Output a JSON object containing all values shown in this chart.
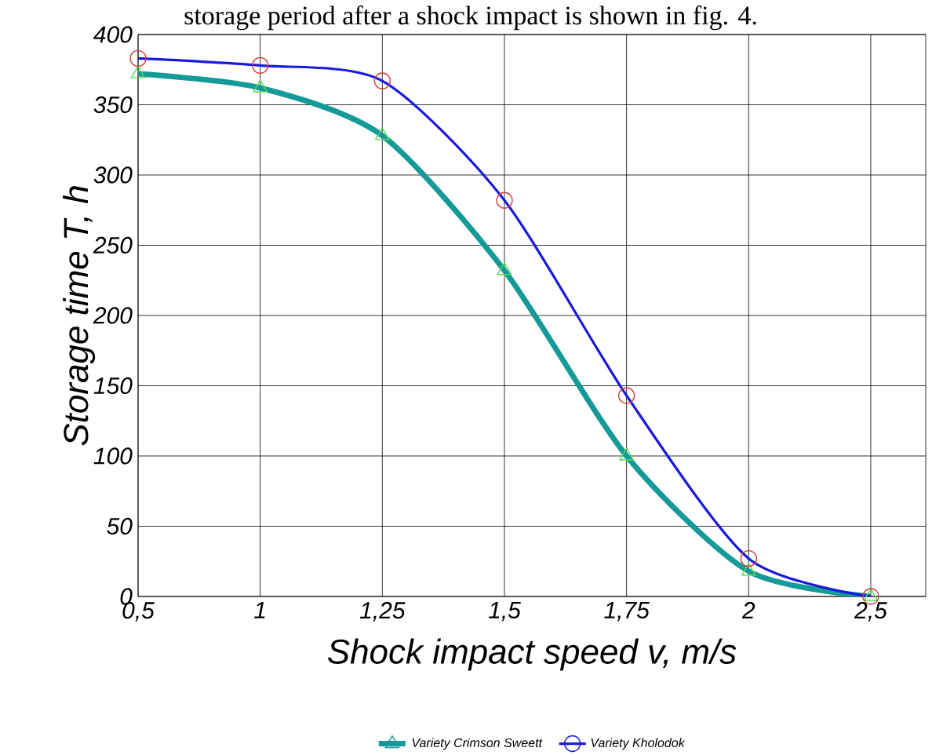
{
  "chart_data": {
    "type": "line",
    "annotations": [
      "storage period after a shock impact is shown in fig. 4."
    ],
    "xlabel": "Shock impact speed v, m/s",
    "ylabel": "Storage time T, h",
    "categories": [
      "0,5",
      "1",
      "1,25",
      "1,5",
      "1,75",
      "2",
      "2,5"
    ],
    "ylim": [
      0,
      400
    ],
    "yticks": [
      0,
      50,
      100,
      150,
      200,
      250,
      300,
      350,
      400
    ],
    "grid": true,
    "legend": "bottom",
    "series": [
      {
        "name": "Variety Crimson Sweett",
        "color": "#159a98",
        "marker": "triangle",
        "colors": [
          "#55dd55",
          "#55dd55",
          "#55dd55",
          "#55dd55",
          "#55dd55",
          "#55dd55",
          "#55dd55"
        ],
        "values": [
          372,
          362,
          328,
          232,
          100,
          18,
          0
        ]
      },
      {
        "name": "Variety Kholodok",
        "color": "#1a1adb",
        "marker": "circle",
        "colors": [
          "#d04040",
          "#d04040",
          "#d04040",
          "#d04040",
          "#d04040",
          "#d04040",
          "#d04040"
        ],
        "values": [
          383,
          378,
          367,
          282,
          143,
          27,
          0
        ]
      }
    ]
  }
}
